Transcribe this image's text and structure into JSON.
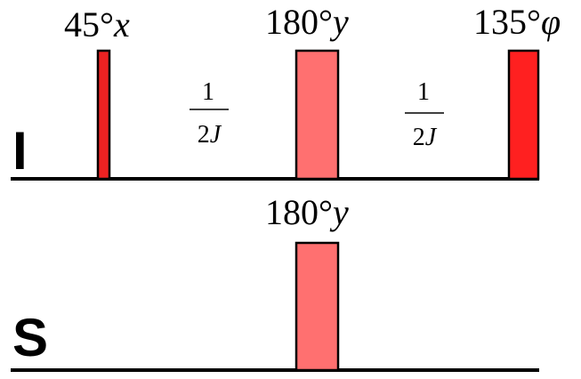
{
  "channels": {
    "i": {
      "label": "I"
    },
    "s": {
      "label": "S"
    }
  },
  "pulses": {
    "i1": {
      "angle": "45°",
      "phase": "x",
      "color": "#ee2222"
    },
    "i2": {
      "angle": "180°",
      "phase": "y",
      "color": "#ff7070"
    },
    "i3": {
      "angle": "135°",
      "phase": "φ",
      "color": "#ff2020"
    },
    "s1": {
      "angle": "180°",
      "phase": "y",
      "color": "#ff7070"
    }
  },
  "delays": {
    "d1": {
      "numerator": "1",
      "denominator_coef": "2",
      "denominator_var": "J"
    },
    "d2": {
      "numerator": "1",
      "denominator_coef": "2",
      "denominator_var": "J"
    }
  }
}
